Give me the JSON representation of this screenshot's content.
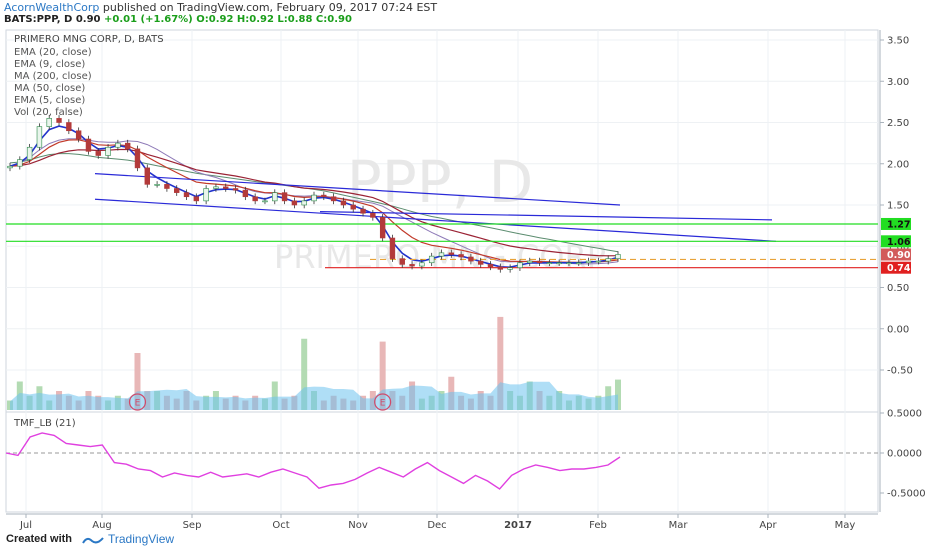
{
  "header": {
    "author": "AcornWealthCorp",
    "published_text": "published on TradingView.com, February 09, 2017 07:24 EST",
    "symbol": "BATS:PPP, D",
    "last": "0.90",
    "change": "+0.01 (+1.67%)",
    "ohlc": "O:0.92 H:0.92 L:0.88 C:0.90"
  },
  "legend": {
    "title": "PRIMERO MNG CORP, D, BATS",
    "indicators": [
      "EMA (20, close)",
      "EMA (9, close)",
      "MA (200, close)",
      "MA (50, close)",
      "EMA (5, close)",
      "Vol (20, false)"
    ]
  },
  "watermark": {
    "ticker": "PPP, D",
    "name": "PRIMERO MNG CORP"
  },
  "footer": {
    "created": "Created with",
    "brand": "TradingView"
  },
  "colors": {
    "ema20": "#9b2335",
    "ema9": "#c23a2a",
    "ema5": "#2233cc",
    "ma200": "#5b8c6f",
    "ma50": "#8f7bb8",
    "trend": "#2a2ad8",
    "support_green": "#22dd22",
    "resistance_red": "#e02020",
    "dashed": "#e8a33a",
    "tmf": "#e040e0",
    "vol_up": "#b3dbb3",
    "vol_down": "#e8b7b7",
    "vol_ma": "#6ec2ef"
  },
  "chart_data": [
    {
      "type": "candlestick",
      "title": "PRIMERO MNG CORP, D, BATS",
      "y_ticks": [
        "3.50",
        "3.00",
        "2.50",
        "2.00",
        "1.50",
        "1.00",
        "0.50",
        "0.00",
        "-0.50"
      ],
      "ylim": [
        -0.5,
        3.5
      ],
      "x_ticks": [
        "Jul",
        "Aug",
        "Sep",
        "Oct",
        "Nov",
        "Dec",
        "2017",
        "Feb",
        "Mar",
        "Apr",
        "May"
      ],
      "price_labels": [
        {
          "text": "1.27",
          "value": 1.27,
          "kind": "support_green"
        },
        {
          "text": "1.06",
          "value": 1.06,
          "kind": "support_green"
        },
        {
          "text": "0.90",
          "value": 0.9,
          "kind": "last"
        },
        {
          "text": "0.74",
          "value": 0.74,
          "kind": "resistance_red"
        }
      ],
      "close_series": [
        1.97,
        2.05,
        2.2,
        2.45,
        2.55,
        2.5,
        2.4,
        2.3,
        2.15,
        2.1,
        2.2,
        2.25,
        2.18,
        1.95,
        1.75,
        1.75,
        1.7,
        1.65,
        1.6,
        1.55,
        1.7,
        1.72,
        1.7,
        1.68,
        1.6,
        1.55,
        1.55,
        1.65,
        1.55,
        1.5,
        1.55,
        1.62,
        1.6,
        1.55,
        1.5,
        1.45,
        1.4,
        1.35,
        1.1,
        0.85,
        0.78,
        0.76,
        0.8,
        0.88,
        0.92,
        0.9,
        0.87,
        0.82,
        0.78,
        0.75,
        0.72,
        0.74,
        0.8,
        0.82,
        0.8,
        0.8,
        0.8,
        0.8,
        0.8,
        0.82,
        0.82,
        0.85,
        0.9
      ],
      "volume_relative": [
        0.1,
        0.3,
        0.15,
        0.25,
        0.1,
        0.2,
        0.15,
        0.1,
        0.2,
        0.15,
        0.1,
        0.15,
        0.12,
        0.6,
        0.2,
        0.2,
        0.15,
        0.12,
        0.2,
        0.1,
        0.15,
        0.2,
        0.12,
        0.15,
        0.1,
        0.15,
        0.12,
        0.3,
        0.12,
        0.15,
        0.75,
        0.2,
        0.1,
        0.15,
        0.12,
        0.1,
        0.15,
        0.2,
        0.72,
        0.2,
        0.15,
        0.3,
        0.12,
        0.15,
        0.2,
        0.35,
        0.15,
        0.12,
        0.2,
        0.15,
        0.98,
        0.2,
        0.15,
        0.3,
        0.2,
        0.15,
        0.2,
        0.1,
        0.15,
        0.12,
        0.15,
        0.25,
        0.32
      ],
      "earnings_markers": [
        {
          "text": "E",
          "at_index": 13
        },
        {
          "text": "E",
          "at_index": 38
        }
      ]
    },
    {
      "type": "line",
      "title": "TMF_LB (21)",
      "y_ticks": [
        "0.5000",
        "0.0000",
        "-0.5000"
      ],
      "ylim": [
        -0.5,
        0.5
      ],
      "series": [
        {
          "name": "TMF_LB (21)",
          "values": [
            0.0,
            -0.03,
            0.2,
            0.25,
            0.22,
            0.12,
            0.1,
            0.08,
            0.1,
            -0.12,
            -0.14,
            -0.2,
            -0.22,
            -0.3,
            -0.25,
            -0.28,
            -0.3,
            -0.24,
            -0.3,
            -0.28,
            -0.26,
            -0.3,
            -0.24,
            -0.2,
            -0.25,
            -0.3,
            -0.44,
            -0.4,
            -0.38,
            -0.33,
            -0.25,
            -0.18,
            -0.24,
            -0.3,
            -0.2,
            -0.12,
            -0.22,
            -0.3,
            -0.38,
            -0.28,
            -0.35,
            -0.45,
            -0.28,
            -0.2,
            -0.15,
            -0.18,
            -0.22,
            -0.2,
            -0.2,
            -0.18,
            -0.15,
            -0.05
          ]
        }
      ]
    }
  ]
}
